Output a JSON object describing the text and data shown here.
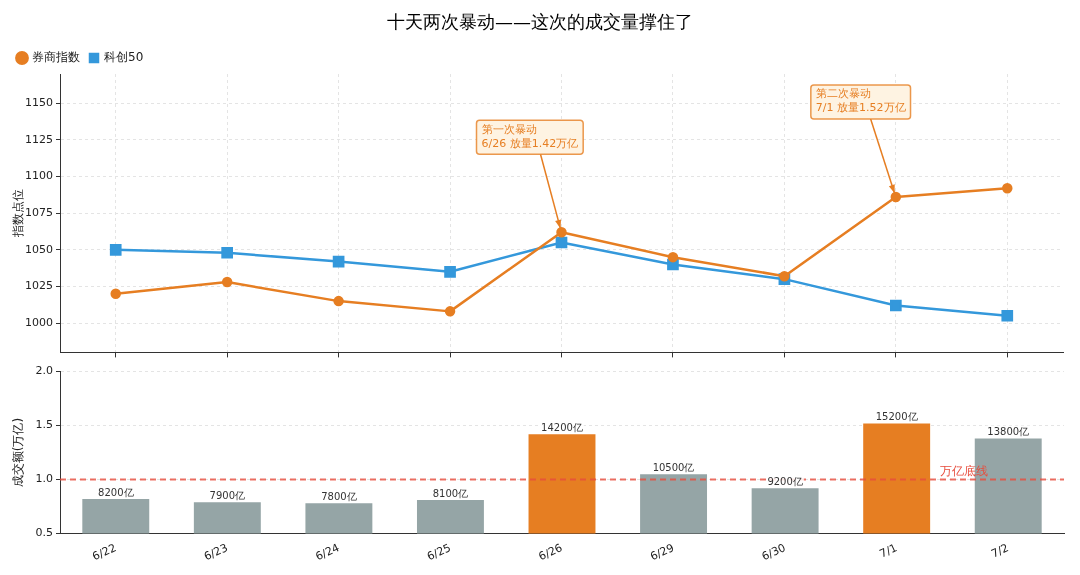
{
  "chart_data": [
    {
      "type": "line",
      "title": "十天两次暴动——这次的成交量撑住了",
      "ylabel": "指数点位",
      "categories": [
        "6/22",
        "6/23",
        "6/24",
        "6/25",
        "6/26",
        "6/29",
        "6/30",
        "7/1",
        "7/2"
      ],
      "series": [
        {
          "name": "券商指数",
          "color": "#e67e22",
          "marker": "circle",
          "values": [
            1020,
            1028,
            1015,
            1008,
            1062,
            1045,
            1032,
            1086,
            1092
          ]
        },
        {
          "name": "科创50",
          "color": "#3498db",
          "marker": "square",
          "values": [
            1050,
            1048,
            1042,
            1035,
            1055,
            1040,
            1030,
            1012,
            1005
          ]
        }
      ],
      "ylim": [
        980,
        1170
      ],
      "yticks": [
        1000,
        1025,
        1050,
        1075,
        1100,
        1125,
        1150
      ],
      "annotations": [
        {
          "text": "第一次暴动\n6/26 放量1.42万亿",
          "x": "6/26",
          "y": 1062
        },
        {
          "text": "第二次暴动\n7/1 放量1.52万亿",
          "x": "7/1",
          "y": 1086
        }
      ],
      "grid": true,
      "legend": "top left",
      "tick_labels": "y"
    },
    {
      "type": "bar",
      "ylabel": "成交额(万亿)",
      "categories": [
        "6/22",
        "6/23",
        "6/24",
        "6/25",
        "6/26",
        "6/29",
        "6/30",
        "7/1",
        "7/2"
      ],
      "values": [
        0.82,
        0.79,
        0.78,
        0.81,
        1.42,
        1.05,
        0.92,
        1.52,
        1.38
      ],
      "colors": [
        "#95a5a6",
        "#95a5a6",
        "#95a5a6",
        "#95a5a6",
        "#e67e22",
        "#95a5a6",
        "#95a5a6",
        "#e67e22",
        "#95a5a6"
      ],
      "annotations": [
        {
          "text": "8200亿",
          "x": "6/22",
          "y": 0.82
        },
        {
          "text": "7900亿",
          "x": "6/23",
          "y": 0.79
        },
        {
          "text": "7800亿",
          "x": "6/24",
          "y": 0.78
        },
        {
          "text": "8100亿",
          "x": "6/25",
          "y": 0.81
        },
        {
          "text": "14200亿",
          "x": "6/26",
          "y": 1.42
        },
        {
          "text": "10500亿",
          "x": "6/29",
          "y": 1.05
        },
        {
          "text": "9200亿",
          "x": "6/30",
          "y": 0.92
        },
        {
          "text": "15200亿",
          "x": "7/1",
          "y": 1.52
        },
        {
          "text": "13800亿",
          "x": "7/2",
          "y": 1.38
        }
      ],
      "ylim": [
        0.5,
        2.0
      ],
      "yticks": [
        {
          "value": 0.5,
          "label": "0.5"
        },
        {
          "value": 1,
          "label": "1.0"
        },
        {
          "value": 1.5,
          "label": "1.5"
        },
        {
          "value": 2,
          "label": "2.0"
        }
      ],
      "ref_lines": [
        {
          "axis": "y",
          "value": 1,
          "label": "万亿底线",
          "color": "#e74c3c",
          "line_style": "dashed"
        }
      ],
      "grid": "y"
    }
  ]
}
